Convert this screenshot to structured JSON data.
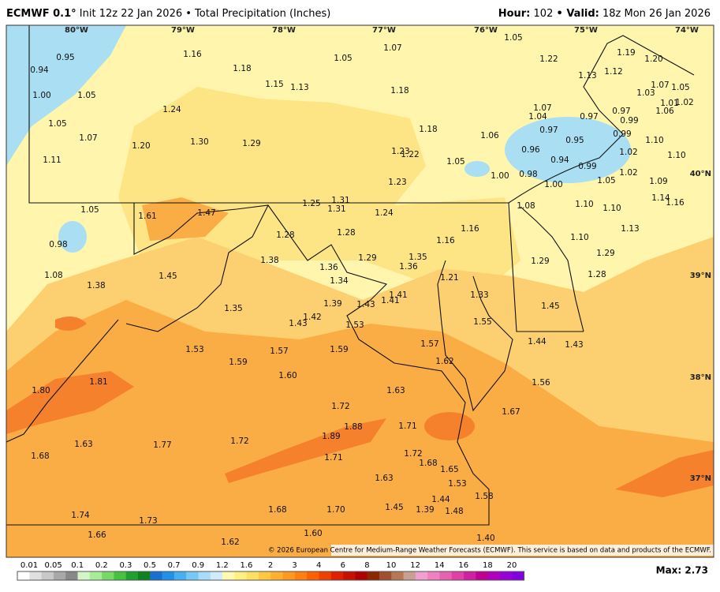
{
  "header": {
    "model": "ECMWF 0.1°",
    "title": "Init 12z 22 Jan 2026 • Total Precipitation (Inches)",
    "hour_label": "Hour:",
    "hour": "102",
    "valid_label": "• Valid:",
    "valid": "18z Mon 26 Jan 2026"
  },
  "lon_labels": [
    "80°W",
    "79°W",
    "78°W",
    "77°W",
    "76°W",
    "75°W",
    "74°W"
  ],
  "lat_labels": [
    "40°N",
    "39°N",
    "38°N",
    "37°N"
  ],
  "values": [
    "0.95",
    "0.94",
    "1.00",
    "1.05",
    "1.05",
    "1.07",
    "1.11",
    "1.16",
    "1.18",
    "1.15",
    "1.13",
    "1.05",
    "1.07",
    "1.18",
    "1.24",
    "1.30",
    "1.20",
    "1.29",
    "1.18",
    "1.23",
    "1.22",
    "1.05",
    "1.06",
    "1.00",
    "1.05",
    "1.22",
    "1.13",
    "1.19",
    "1.12",
    "1.20",
    "1.07",
    "1.03",
    "1.05",
    "1.01",
    "1.02",
    "1.06",
    "1.07",
    "1.04",
    "0.97",
    "0.97",
    "0.99",
    "0.97",
    "0.99",
    "0.95",
    "1.10",
    "0.96",
    "1.02",
    "0.94",
    "1.10",
    "0.98",
    "0.99",
    "1.02",
    "1.00",
    "1.05",
    "1.09",
    "1.23",
    "1.05",
    "1.61",
    "1.47",
    "1.25",
    "1.31",
    "1.31",
    "1.24",
    "1.08",
    "1.10",
    "1.10",
    "1.14",
    "1.16",
    "0.98",
    "1.28",
    "1.28",
    "1.16",
    "1.16",
    "1.29",
    "1.35",
    "1.36",
    "1.38",
    "1.36",
    "1.10",
    "1.13",
    "1.29",
    "1.08",
    "1.45",
    "1.38",
    "1.34",
    "1.21",
    "1.28",
    "1.29",
    "1.39",
    "1.43",
    "1.41",
    "1.41",
    "1.33",
    "1.35",
    "1.42",
    "1.43",
    "1.53",
    "1.45",
    "1.55",
    "1.53",
    "1.57",
    "1.59",
    "1.57",
    "1.44",
    "1.43",
    "1.59",
    "1.62",
    "1.60",
    "1.81",
    "1.80",
    "1.63",
    "1.56",
    "1.72",
    "1.67",
    "1.88",
    "1.89",
    "1.71",
    "1.63",
    "1.77",
    "1.72",
    "1.71",
    "1.68",
    "1.72",
    "1.68",
    "1.65",
    "1.63",
    "1.53",
    "1.44",
    "1.58",
    "1.68",
    "1.70",
    "1.45",
    "1.39",
    "1.48",
    "1.74",
    "1.73",
    "1.60",
    "1.40",
    "1.66",
    "1.62"
  ],
  "credit": "© 2026 European Centre for Medium-Range Weather Forecasts (ECMWF). This service is based on data and products of the ECMWF.",
  "scale_labels": [
    "0.01",
    "0.05",
    "0.1",
    "0.2",
    "0.3",
    "0.5",
    "0.7",
    "0.9",
    "1.2",
    "1.6",
    "2",
    "3",
    "4",
    "6",
    "8",
    "10",
    "12",
    "14",
    "16",
    "18",
    "20"
  ],
  "max": "Max: 2.73"
}
